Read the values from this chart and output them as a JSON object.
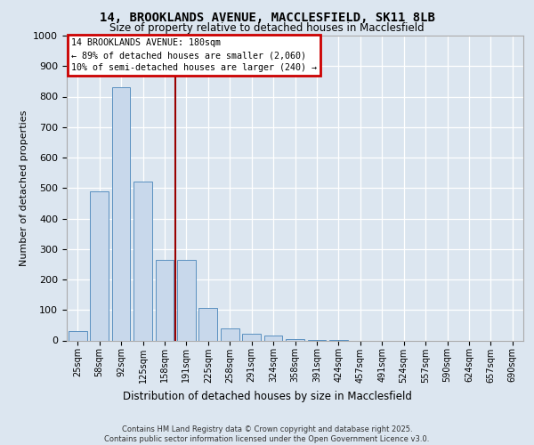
{
  "title_line1": "14, BROOKLANDS AVENUE, MACCLESFIELD, SK11 8LB",
  "title_line2": "Size of property relative to detached houses in Macclesfield",
  "xlabel": "Distribution of detached houses by size in Macclesfield",
  "ylabel": "Number of detached properties",
  "categories": [
    "25sqm",
    "58sqm",
    "92sqm",
    "125sqm",
    "158sqm",
    "191sqm",
    "225sqm",
    "258sqm",
    "291sqm",
    "324sqm",
    "358sqm",
    "391sqm",
    "424sqm",
    "457sqm",
    "491sqm",
    "524sqm",
    "557sqm",
    "590sqm",
    "624sqm",
    "657sqm",
    "690sqm"
  ],
  "values": [
    30,
    490,
    830,
    520,
    265,
    265,
    108,
    40,
    22,
    15,
    5,
    2,
    1,
    0,
    0,
    0,
    0,
    0,
    0,
    0,
    0
  ],
  "bar_color": "#c8d8eb",
  "bar_edge_color": "#5a90c0",
  "vline_color": "#990000",
  "vline_x_index": 4.5,
  "annotation_title": "14 BROOKLANDS AVENUE: 180sqm",
  "annotation_line1": "← 89% of detached houses are smaller (2,060)",
  "annotation_line2": "10% of semi-detached houses are larger (240) →",
  "annotation_box_edgecolor": "#cc0000",
  "ylim": [
    0,
    1000
  ],
  "yticks": [
    0,
    100,
    200,
    300,
    400,
    500,
    600,
    700,
    800,
    900,
    1000
  ],
  "footer_line1": "Contains HM Land Registry data © Crown copyright and database right 2025.",
  "footer_line2": "Contains public sector information licensed under the Open Government Licence v3.0.",
  "bg_color": "#dce6f0",
  "grid_color": "#ffffff"
}
